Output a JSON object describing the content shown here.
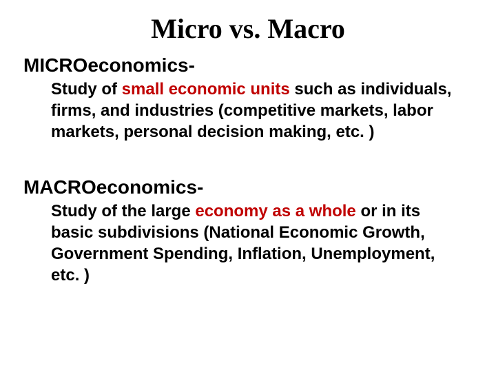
{
  "colors": {
    "background": "#ffffff",
    "text": "#000000",
    "highlight": "#c00000"
  },
  "typography": {
    "title_font": "Times New Roman",
    "body_font": "Arial",
    "title_size_pt": 40,
    "heading_size_pt": 28,
    "body_size_pt": 24,
    "title_weight": "bold",
    "heading_weight": "bold",
    "body_weight": "bold"
  },
  "title": "Micro vs. Macro",
  "micro": {
    "heading": "MICROeconomics-",
    "body_pre": "Study of ",
    "body_highlight": "small economic units",
    "body_post": " such as individuals, firms, and industries (competitive markets, labor markets, personal decision making, etc. )"
  },
  "macro": {
    "heading": "MACROeconomics-",
    "body_pre": "Study of the large ",
    "body_highlight": "economy as a whole",
    "body_post": " or in its basic subdivisions (National Economic Growth, Government Spending, Inflation, Unemployment, etc. )"
  }
}
